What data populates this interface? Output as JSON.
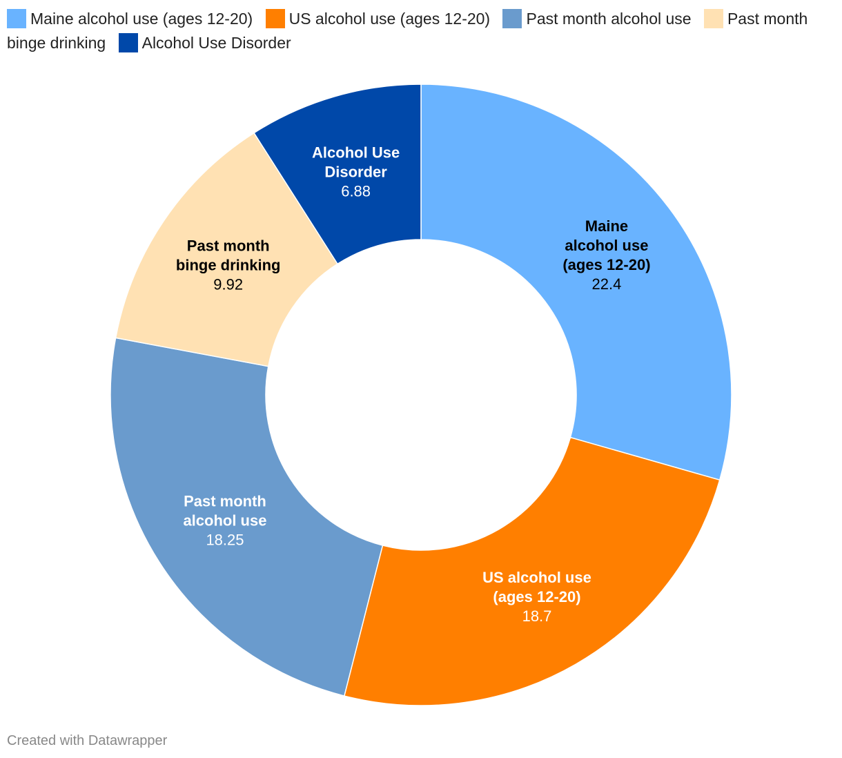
{
  "chart_data": {
    "type": "pie",
    "donut": true,
    "legend_position": "top",
    "categories": [
      "Maine alcohol use (ages 12-20)",
      "US alcohol use (ages 12-20)",
      "Past month alcohol use",
      "Past month binge drinking",
      "Alcohol Use Disorder"
    ],
    "values": [
      22.4,
      18.7,
      18.25,
      9.92,
      6.88
    ],
    "value_labels": [
      "22.4",
      "18.7",
      "18.25",
      "9.92",
      "6.88"
    ],
    "slice_labels": [
      [
        "Maine",
        "alcohol use",
        "(ages 12-20)"
      ],
      [
        "US alcohol use",
        "(ages 12-20)"
      ],
      [
        "Past month",
        "alcohol use"
      ],
      [
        "Past month",
        "binge drinking"
      ],
      [
        "Alcohol Use",
        "Disorder"
      ]
    ],
    "colors": [
      "#69b3ff",
      "#ff7f00",
      "#6a9bcd",
      "#ffe1b3",
      "#0048a9"
    ],
    "label_colors": [
      "#000000",
      "#ffffff",
      "#ffffff",
      "#000000",
      "#ffffff"
    ]
  },
  "footer": {
    "credit": "Created with Datawrapper"
  }
}
